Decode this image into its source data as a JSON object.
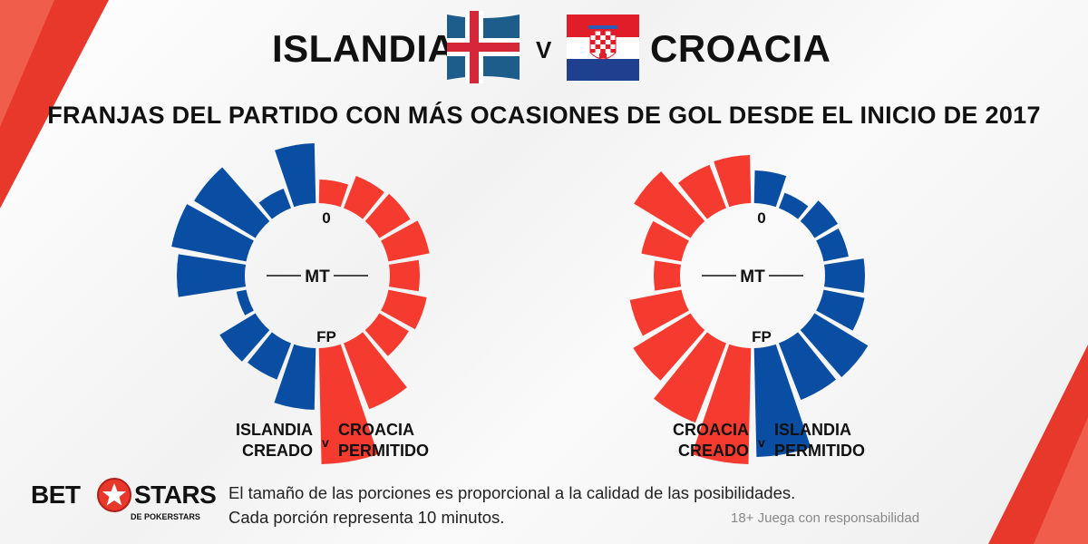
{
  "header": {
    "team_left": "ISLANDIA",
    "vs": "V",
    "team_right": "CROACIA",
    "flag_left": "iceland-flag",
    "flag_right": "croatia-flag"
  },
  "subtitle": "FRANJAS DEL PARTIDO CON MÁS OCASIONES DE GOL DESDE EL INICIO DE 2017",
  "chart_data": [
    {
      "type": "radial-bar",
      "center_labels": {
        "start": "0",
        "half": "MT",
        "end": "FP"
      },
      "categories": [
        "0-10",
        "10-20",
        "20-30",
        "30-40",
        "40-50",
        "50-60",
        "60-70",
        "70-80",
        "80-90"
      ],
      "series": [
        {
          "name": "ISLANDIA CREADO",
          "color": "#0a4ea3",
          "side": "left",
          "values": [
            66,
            23,
            79,
            84,
            75,
            11,
            46,
            43,
            68
          ]
        },
        {
          "name": "CROACIA PERMITIDO",
          "color": "#f53b30",
          "side": "right",
          "values": [
            26,
            38,
            40,
            46,
            33,
            43,
            38,
            78,
            128
          ]
        }
      ],
      "legend": {
        "left_line1": "ISLANDIA",
        "left_line2": "CREADO",
        "v": "v",
        "right_line1": "CROACIA",
        "right_line2": "PERMITIDO"
      }
    },
    {
      "type": "radial-bar",
      "center_labels": {
        "start": "0",
        "half": "MT",
        "end": "FP"
      },
      "categories": [
        "0-10",
        "10-20",
        "20-30",
        "30-40",
        "40-50",
        "50-60",
        "60-70",
        "70-80",
        "80-90"
      ],
      "series": [
        {
          "name": "CROACIA CREADO",
          "color": "#f53b30",
          "side": "left",
          "values": [
            53,
            51,
            73,
            45,
            29,
            58,
            74,
            94,
            128
          ]
        },
        {
          "name": "ISLANDIA PERMITIDO",
          "color": "#0a4ea3",
          "side": "right",
          "values": [
            36,
            18,
            30,
            28,
            44,
            46,
            69,
            67,
            120
          ]
        }
      ],
      "legend": {
        "left_line1": "CROACIA",
        "left_line2": "CREADO",
        "v": "v",
        "right_line1": "ISLANDIA",
        "right_line2": "PERMITIDO"
      }
    }
  ],
  "logo": {
    "bet": "BET",
    "stars": "STARS",
    "sub": "DE POKERSTARS"
  },
  "footnote": {
    "line1": "El tamaño de las porciones es proporcional a la calidad de las posibilidades.",
    "line2": "Cada porción representa 10 minutos."
  },
  "responsible": "18+ Juega con responsabilidad"
}
